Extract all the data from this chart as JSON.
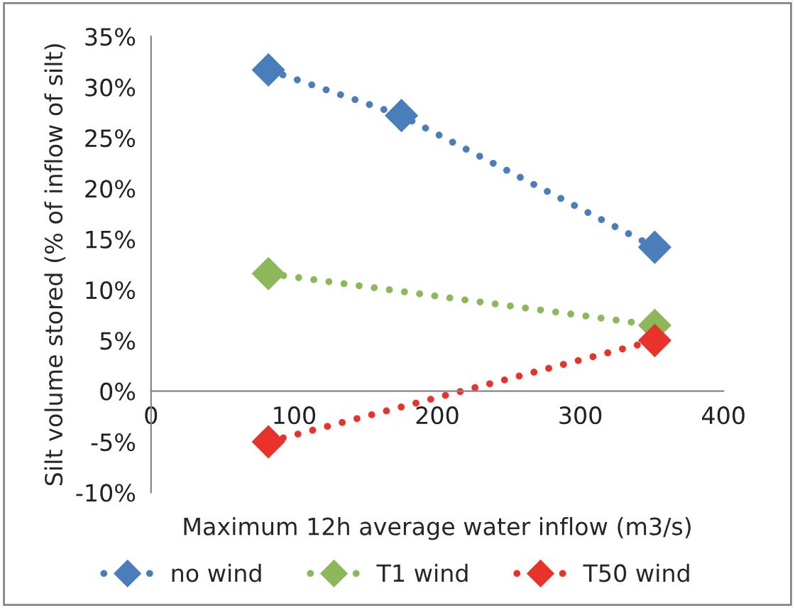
{
  "chart_data": {
    "type": "line",
    "xlabel": "Maximum 12h average water inflow (m3/s)",
    "ylabel": "Silt volume stored (% of inflow of silt)",
    "x": [
      82,
      175,
      352
    ],
    "series": [
      {
        "name": "no wind",
        "color": "#4a7ebb",
        "values": [
          31.7,
          27.2,
          14.2
        ]
      },
      {
        "name": "T1 wind",
        "color": "#8db85a",
        "values": [
          11.6,
          null,
          6.5
        ]
      },
      {
        "name": "T50 wind",
        "color": "#e8322a",
        "values": [
          -5.0,
          null,
          5.0
        ]
      }
    ],
    "xlim": [
      0,
      400
    ],
    "xticks": [
      0,
      100,
      200,
      300,
      400
    ],
    "ylim": [
      -10,
      35
    ],
    "yticks": [
      {
        "value": -10,
        "label": "-10%"
      },
      {
        "value": -5,
        "label": "-5%"
      },
      {
        "value": 0,
        "label": "0%"
      },
      {
        "value": 5,
        "label": "5%"
      },
      {
        "value": 10,
        "label": "10%"
      },
      {
        "value": 15,
        "label": "15%"
      },
      {
        "value": 20,
        "label": "20%"
      },
      {
        "value": 25,
        "label": "25%"
      },
      {
        "value": 30,
        "label": "30%"
      },
      {
        "value": 35,
        "label": "35%"
      }
    ],
    "marker": "diamond",
    "line_style": "dotted",
    "legend": "bottom",
    "grid": false
  }
}
